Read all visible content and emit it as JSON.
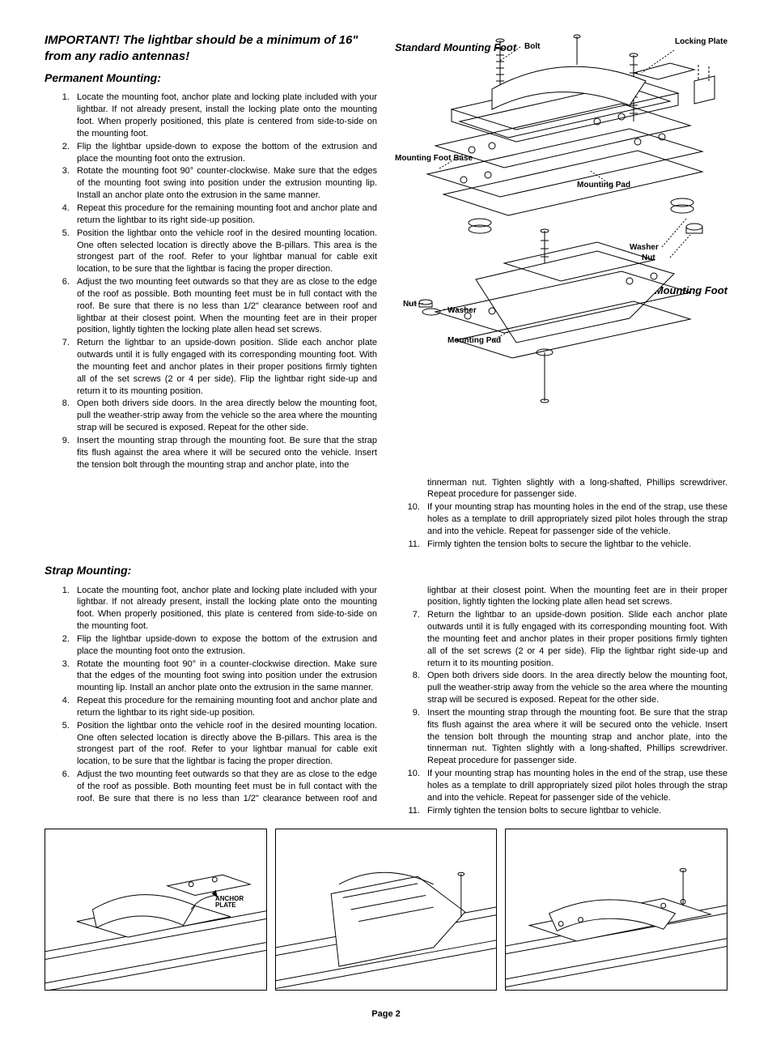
{
  "warning": "IMPORTANT! The lightbar should be a minimum of 16\" from any radio antennas!",
  "permanent_title": "Permanent Mounting:",
  "permanent_steps": [
    "Locate the mounting foot, anchor plate and locking plate included with your lightbar. If not already present, install the locking plate onto the mounting foot. When properly positioned, this plate is centered from side-to-side on the mounting foot.",
    "Flip the lightbar upside-down to expose the bottom of the extrusion and place the mounting foot onto the extrusion.",
    "Rotate the mounting foot 90° counter-clockwise. Make sure that the edges of the mounting foot swing into position under the extrusion mounting lip. Install an anchor plate onto the extrusion in the same manner.",
    "Repeat this procedure for the remaining mounting foot and anchor plate and return the lightbar to its right side-up position.",
    "Position the lightbar onto the vehicle roof in the desired mounting location. One often selected location is directly above the B-pillars. This area is the strongest part of the roof. Refer to your lightbar manual for cable exit location, to be sure that the lightbar is facing the proper direction.",
    "Adjust the two mounting feet outwards so that they are as close to the edge of the roof as possible. Both mounting feet must be in full contact with the roof. Be sure that there is no less than 1/2\" clearance between roof and lightbar at their closest point. When the mounting feet are in their proper position, lightly tighten the locking plate allen head set screws.",
    "Return the lightbar to an upside-down position. Slide each anchor plate outwards until it is fully engaged with its corresponding mounting foot. With the mounting feet and anchor plates in their proper positions firmly tighten all of the set screws (2 or 4 per side). Flip the lightbar right side-up and return it to its mounting position.",
    "Open both drivers side doors. In the area directly below the mounting foot, pull the weather-strip away from the vehicle so the area where the mounting strap will be secured is exposed. Repeat for the other side.",
    "Insert the mounting strap through the mounting foot. Be sure that the strap fits flush against the area where it will be secured onto the vehicle. Insert the tension bolt through the mounting strap and anchor plate, into the"
  ],
  "permanent_cont": [
    "tinnerman nut. Tighten slightly with a long-shafted, Phillips screwdriver. Repeat procedure for passenger side.",
    "If your mounting strap has mounting holes in the end of the strap, use these holes as a template to drill appropriately sized pilot holes through the strap and into the vehicle. Repeat for passenger side of the vehicle.",
    "Firmly tighten the tension bolts to secure the lightbar to the vehicle."
  ],
  "strap_title": "Strap Mounting:",
  "strap_steps": [
    "Locate the mounting foot, anchor plate and locking plate included with your lightbar. If not already present, install the locking plate onto the mounting foot. When properly positioned, this plate is centered from side-to-side on the mounting foot.",
    "Flip the lightbar upside-down to expose the bottom of the extrusion and place the mounting foot onto the extrusion.",
    "Rotate the mounting foot 90° in a counter-clockwise direction. Make sure that the edges of the mounting foot swing into position under the extrusion mounting lip. Install an anchor plate onto the extrusion in the same manner.",
    "Repeat this procedure for the remaining mounting foot and anchor plate and return the lightbar to its right side-up position.",
    "Position the lightbar onto the vehicle roof in the desired mounting location. One often selected location is directly above the B-pillars. This area is the strongest part of the roof. Refer to your lightbar manual for cable exit location, to be sure that the lightbar is facing the proper direction.",
    "Adjust the two mounting feet outwards so that they are as close to the edge of the roof as possible. Both mounting feet must be in full contact with the roof. Be sure that there is no less than 1/2\" clearance between roof and lightbar at their closest point. When the mounting feet are in their proper position, lightly tighten the locking plate allen head set screws.",
    "Return the lightbar to an upside-down position. Slide each anchor plate outwards until it is fully engaged with its corresponding mounting foot. With the mounting feet and anchor plates in their proper positions firmly tighten all of the set screws (2 or 4 per side). Flip the lightbar right side-up and return it to its mounting position.",
    "Open both drivers side doors. In the area directly below the mounting foot, pull the weather-strip away from the vehicle so the area where the mounting strap will be secured is exposed. Repeat for the other side.",
    "Insert the mounting strap through the mounting foot. Be sure that the strap fits flush against the area where it will be secured onto the vehicle. Insert the tension bolt through the mounting strap and anchor plate, into the tinnerman nut. Tighten slightly with a long-shafted, Phillips screwdriver. Repeat procedure for passenger side.",
    "If your mounting strap has mounting holes in the end of the strap, use these holes as a template to drill appropriately sized pilot holes through the strap and into the vehicle. Repeat for passenger side of the vehicle.",
    "Firmly tighten the tension bolts to secure lightbar to vehicle."
  ],
  "diagram": {
    "standard_foot": "Standard Mounting Foot",
    "adjustable_foot": "Adjustable Mounting Foot",
    "bolt": "Bolt",
    "locking_plate": "Locking Plate",
    "mounting_foot_base": "Mounting Foot Base",
    "mounting_pad": "Mounting Pad",
    "washer": "Washer",
    "nut": "Nut",
    "anchor_plate": "ANCHOR PLATE"
  },
  "page": "Page 2",
  "style": {
    "stroke": "#000000",
    "fill": "#ffffff",
    "dotted": "2,2"
  }
}
